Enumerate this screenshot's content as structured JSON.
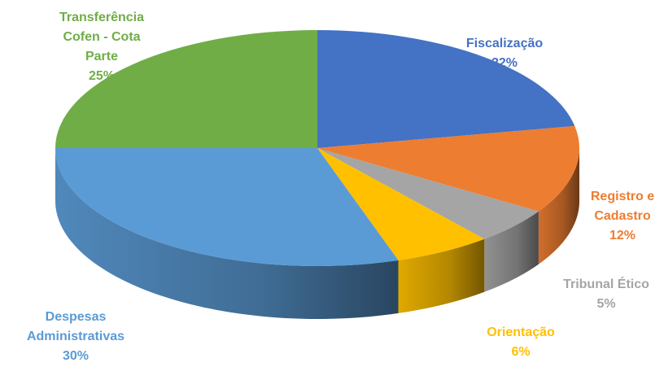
{
  "chart_data": {
    "type": "pie3d",
    "categories": [
      "Fiscalização",
      "Registro e Cadastro",
      "Tribunal Ético",
      "Orientação",
      "Despesas Administrativas",
      "Transferência Cofen - Cota Parte"
    ],
    "values": [
      22,
      12,
      5,
      6,
      30,
      25
    ],
    "value_labels": [
      "22%",
      "12%",
      "5%",
      "6%",
      "30%",
      "25%"
    ],
    "colors": [
      "#4472c4",
      "#ed7d31",
      "#a5a5a5",
      "#ffc000",
      "#5b9bd5",
      "#70ad47"
    ]
  }
}
